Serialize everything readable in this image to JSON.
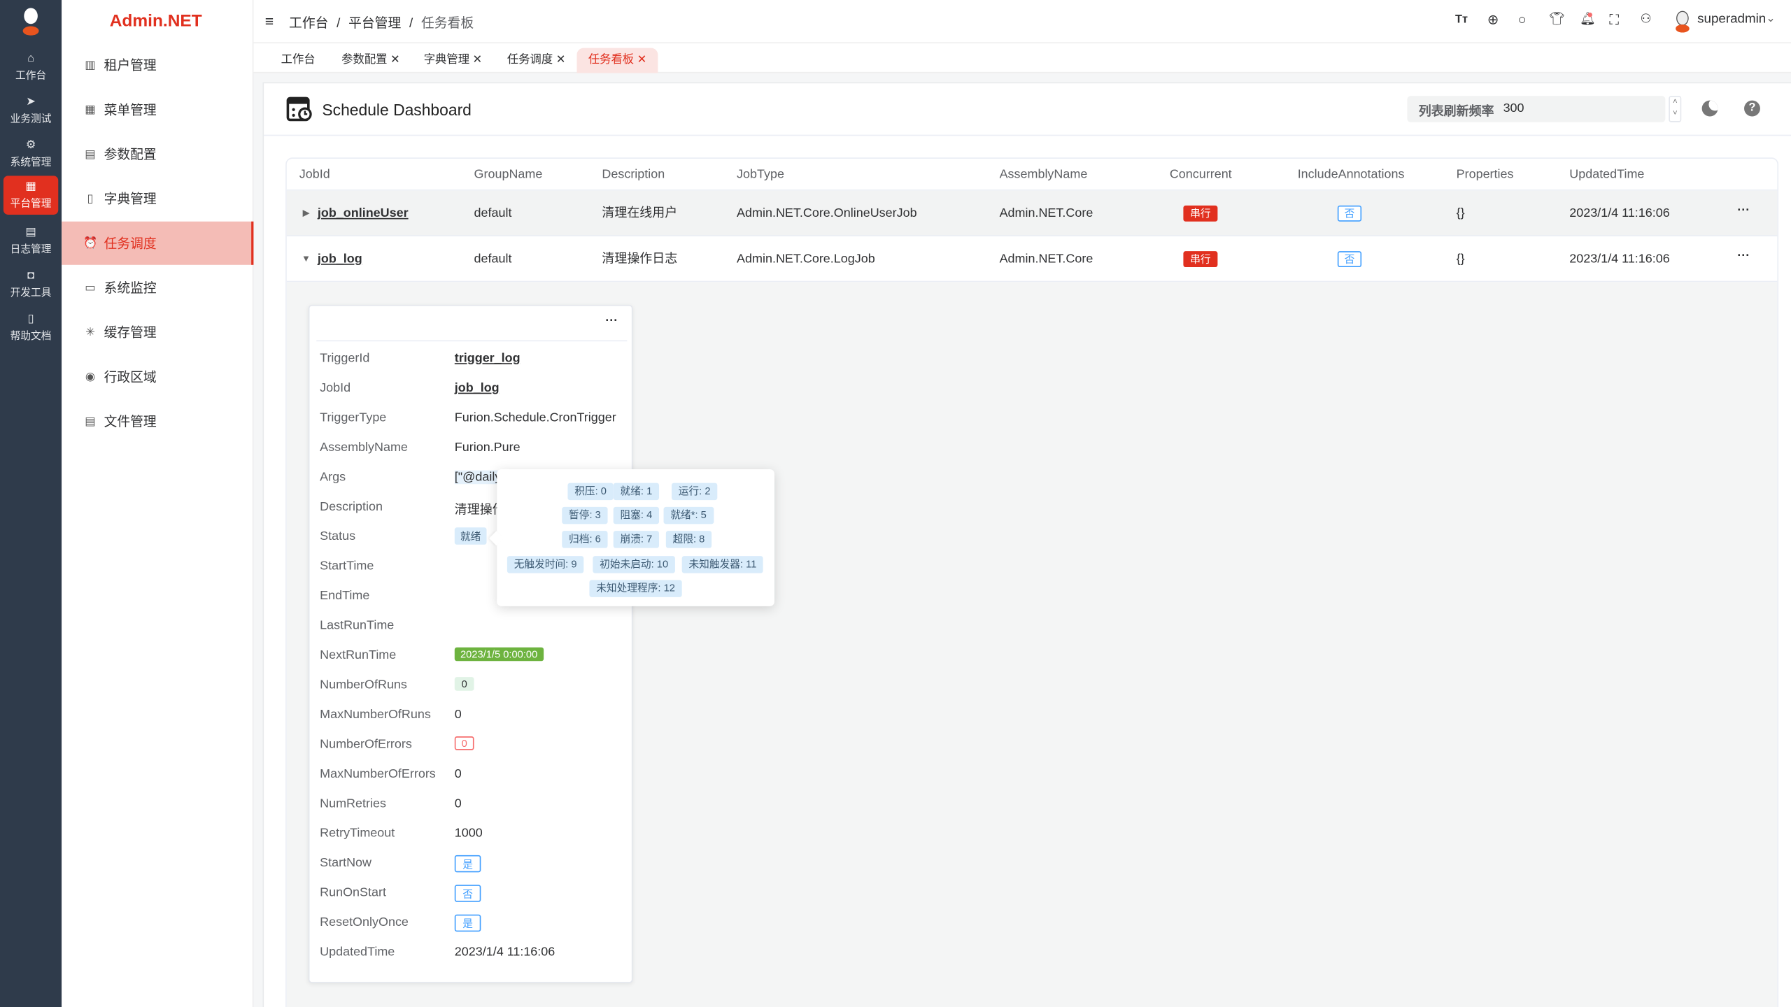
{
  "app": {
    "logo_text": "Admin.NET",
    "brand_color": "#e1301f"
  },
  "rail": {
    "items": [
      {
        "label": "工作台",
        "icon": "home-icon"
      },
      {
        "label": "业务测试",
        "icon": "send-icon"
      },
      {
        "label": "系统管理",
        "icon": "gear-icon"
      },
      {
        "label": "平台管理",
        "icon": "grid-icon",
        "active": true
      },
      {
        "label": "日志管理",
        "icon": "document-icon"
      },
      {
        "label": "开发工具",
        "icon": "chip-icon"
      },
      {
        "label": "帮助文档",
        "icon": "book-icon"
      }
    ]
  },
  "sidebar": {
    "items": [
      {
        "label": "租户管理",
        "icon": "building-icon"
      },
      {
        "label": "菜单管理",
        "icon": "grid-icon"
      },
      {
        "label": "参数配置",
        "icon": "document-icon"
      },
      {
        "label": "字典管理",
        "icon": "book-icon"
      },
      {
        "label": "任务调度",
        "icon": "alarm-clock-icon",
        "active": true
      },
      {
        "label": "系统监控",
        "icon": "monitor-icon"
      },
      {
        "label": "缓存管理",
        "icon": "sparkle-icon"
      },
      {
        "label": "行政区域",
        "icon": "location-icon"
      },
      {
        "label": "文件管理",
        "icon": "file-icon"
      }
    ]
  },
  "header": {
    "breadcrumb": [
      "工作台",
      "平台管理",
      "任务看板"
    ],
    "separator": "/",
    "username": "superadmin"
  },
  "tabs": [
    {
      "label": "工作台",
      "closable": false
    },
    {
      "label": "参数配置",
      "closable": true
    },
    {
      "label": "字典管理",
      "closable": true
    },
    {
      "label": "任务调度",
      "closable": true
    },
    {
      "label": "任务看板",
      "closable": true,
      "active": true
    }
  ],
  "dashboard": {
    "title": "Schedule Dashboard",
    "refresh_label": "列表刷新频率",
    "refresh_value": "300"
  },
  "table": {
    "columns": [
      "JobId",
      "GroupName",
      "Description",
      "JobType",
      "AssemblyName",
      "Concurrent",
      "IncludeAnnotations",
      "Properties",
      "UpdatedTime"
    ],
    "rows": [
      {
        "JobId": "job_onlineUser",
        "GroupName": "default",
        "Description": "清理在线用户",
        "JobType": "Admin.NET.Core.OnlineUserJob",
        "AssemblyName": "Admin.NET.Core",
        "Concurrent": "串行",
        "IncludeAnnotations": "否",
        "Properties": "{}",
        "UpdatedTime": "2023/1/4 11:16:06",
        "expanded": false
      },
      {
        "JobId": "job_log",
        "GroupName": "default",
        "Description": "清理操作日志",
        "JobType": "Admin.NET.Core.LogJob",
        "AssemblyName": "Admin.NET.Core",
        "Concurrent": "串行",
        "IncludeAnnotations": "否",
        "Properties": "{}",
        "UpdatedTime": "2023/1/4 11:16:06",
        "expanded": true
      }
    ]
  },
  "trigger": {
    "fields": [
      {
        "label": "TriggerId",
        "value": "trigger_log"
      },
      {
        "label": "JobId",
        "value": "job_log"
      },
      {
        "label": "TriggerType",
        "value": "Furion.Schedule.CronTrigger"
      },
      {
        "label": "AssemblyName",
        "value": "Furion.Pure"
      },
      {
        "label": "Args",
        "value": "[\"@daily"
      },
      {
        "label": "Description",
        "value": "清理操作"
      },
      {
        "label": "Status",
        "value": "就绪"
      },
      {
        "label": "StartTime",
        "value": ""
      },
      {
        "label": "EndTime",
        "value": ""
      },
      {
        "label": "LastRunTime",
        "value": ""
      },
      {
        "label": "NextRunTime",
        "value": "2023/1/5 0:00:00"
      },
      {
        "label": "NumberOfRuns",
        "value": "0"
      },
      {
        "label": "MaxNumberOfRuns",
        "value": "0"
      },
      {
        "label": "NumberOfErrors",
        "value": "0"
      },
      {
        "label": "MaxNumberOfErrors",
        "value": "0"
      },
      {
        "label": "NumRetries",
        "value": "0"
      },
      {
        "label": "RetryTimeout",
        "value": "1000"
      },
      {
        "label": "StartNow",
        "value": "是"
      },
      {
        "label": "RunOnStart",
        "value": "否"
      },
      {
        "label": "ResetOnlyOnce",
        "value": "是"
      },
      {
        "label": "UpdatedTime",
        "value": "2023/1/4 11:16:06"
      }
    ]
  },
  "status_popover": {
    "items": [
      "积压: 0",
      "就绪: 1",
      "运行: 2",
      "暂停: 3",
      "阻塞: 4",
      "就绪*: 5",
      "归档: 6",
      "崩溃: 7",
      "超限: 8",
      "无触发时间: 9",
      "初始未启动: 10",
      "未知触发器: 11",
      "未知处理程序: 12"
    ]
  }
}
